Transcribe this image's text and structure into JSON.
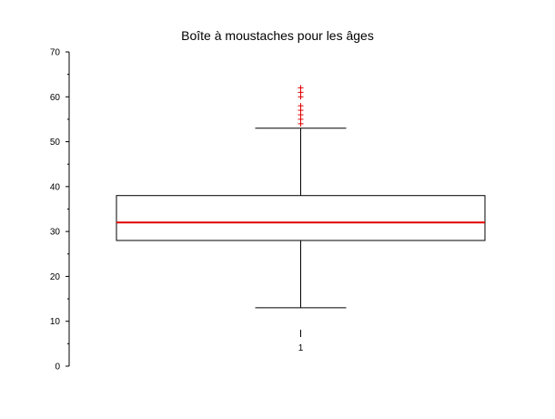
{
  "chart_data": {
    "type": "box",
    "title": "Boîte à moustaches pour les âges",
    "xlabel": "",
    "ylabel": "",
    "ylim": [
      0,
      70
    ],
    "yticks": [
      0,
      10,
      20,
      30,
      40,
      50,
      60,
      70
    ],
    "categories": [
      "1"
    ],
    "box": {
      "whisker_low": 13,
      "q1": 28,
      "median": 32,
      "q3": 38,
      "whisker_high": 53,
      "outliers": [
        54,
        55,
        56,
        57,
        58,
        60,
        61,
        62
      ]
    },
    "colors": {
      "median": "#e00000",
      "outliers": "#e00000",
      "box": "#000000"
    },
    "grid": false
  }
}
